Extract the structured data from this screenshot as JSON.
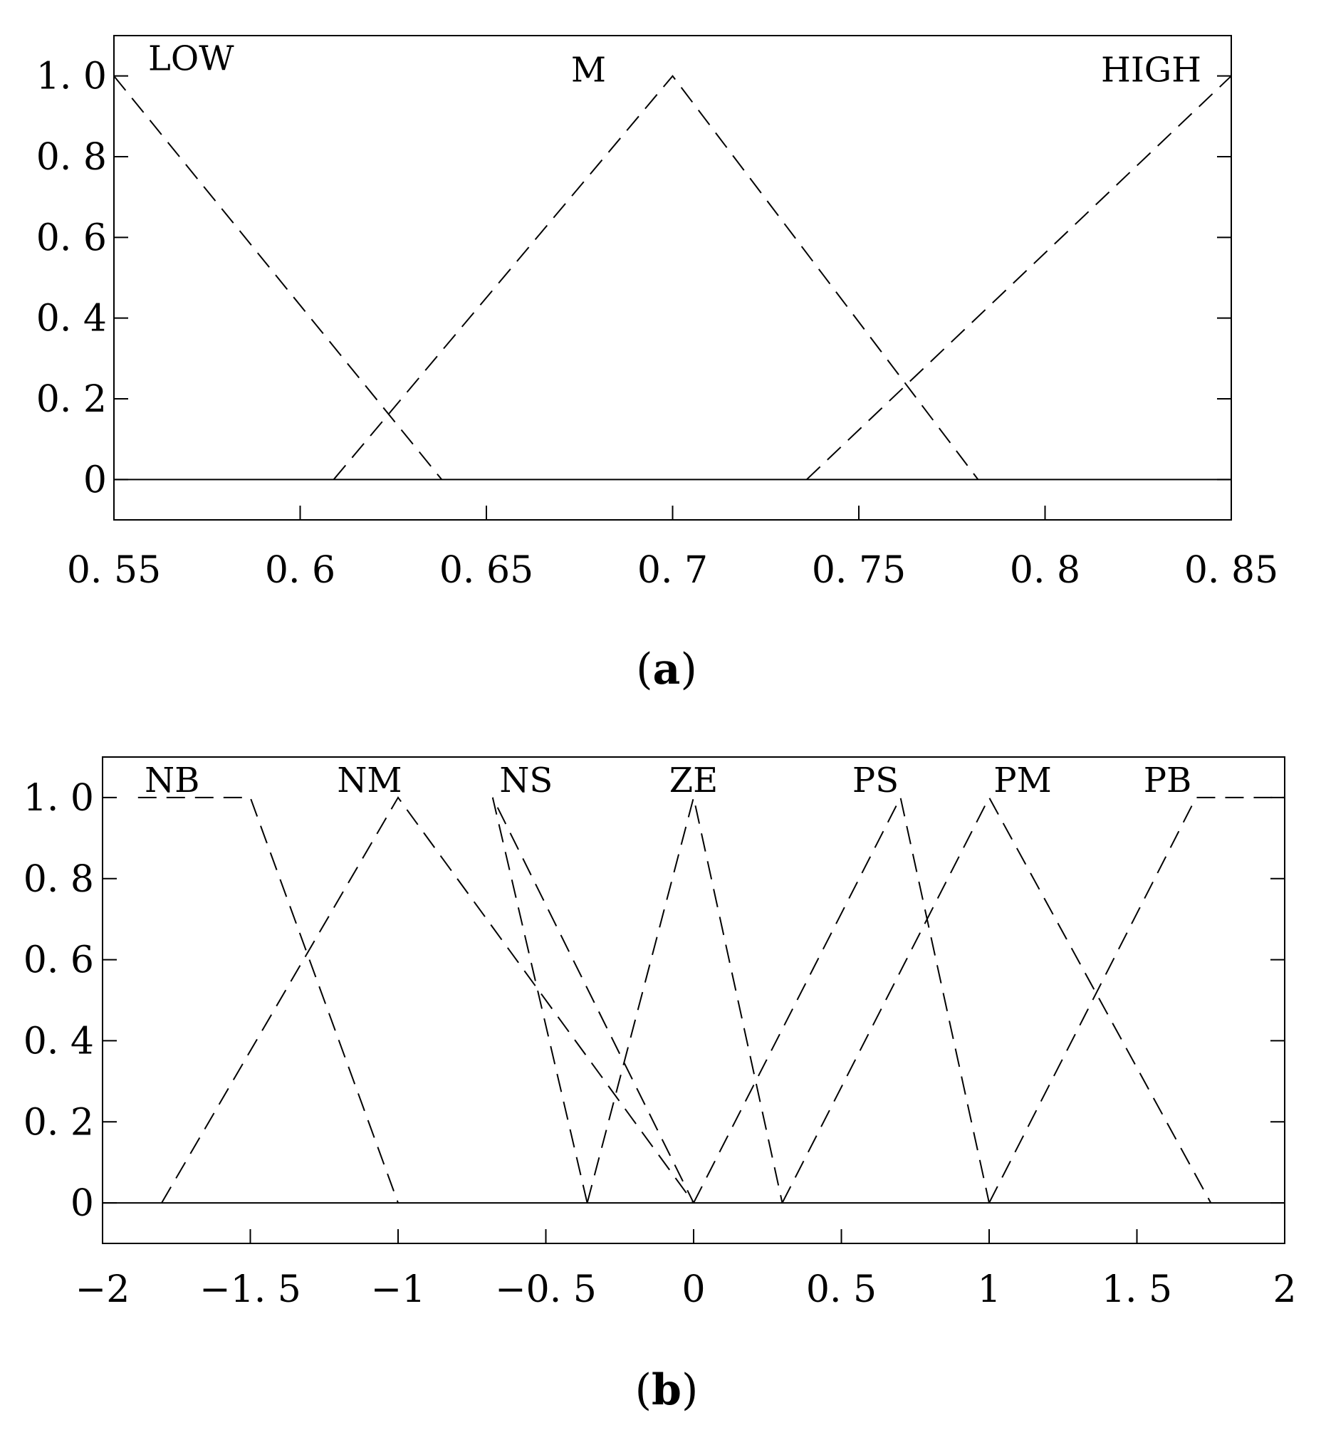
{
  "chart_data": [
    {
      "type": "line",
      "panel": "a",
      "caption": "a",
      "x_ticks": [
        "0. 55",
        "0. 6",
        "0. 65",
        "0. 7",
        "0. 75",
        "0. 8",
        "0. 85"
      ],
      "x_tick_values": [
        0.55,
        0.6,
        0.65,
        0.7,
        0.75,
        0.8,
        0.85
      ],
      "y_ticks": [
        "0",
        "0. 2",
        "0. 4",
        "0. 6",
        "0. 8",
        "1. 0"
      ],
      "y_tick_values": [
        0,
        0.2,
        0.4,
        0.6,
        0.8,
        1.0
      ],
      "xlim": [
        0.55,
        0.85
      ],
      "ylim": [
        -0.1,
        1.1
      ],
      "grid": false,
      "line_style": "dashed",
      "series": [
        {
          "name": "LOW",
          "points": [
            [
              0.55,
              1.0
            ],
            [
              0.638,
              0.0
            ]
          ]
        },
        {
          "name": "M",
          "points": [
            [
              0.609,
              0.0
            ],
            [
              0.7,
              1.0
            ],
            [
              0.782,
              0.0
            ]
          ]
        },
        {
          "name": "HIGH",
          "points": [
            [
              0.736,
              0.0
            ],
            [
              0.85,
              1.0
            ]
          ]
        }
      ]
    },
    {
      "type": "line",
      "panel": "b",
      "caption": "b",
      "x_ticks": [
        "−2",
        "−1. 5",
        "−1",
        "−0. 5",
        "0",
        "0. 5",
        "1",
        "1. 5",
        "2"
      ],
      "x_tick_values": [
        -2,
        -1.5,
        -1,
        -0.5,
        0,
        0.5,
        1,
        1.5,
        2
      ],
      "y_ticks": [
        "0",
        "0. 2",
        "0. 4",
        "0. 6",
        "0. 8",
        "1. 0"
      ],
      "y_tick_values": [
        0,
        0.2,
        0.4,
        0.6,
        0.8,
        1.0
      ],
      "xlim": [
        -2,
        2
      ],
      "ylim": [
        -0.1,
        1.1
      ],
      "grid": false,
      "line_style": "dashed",
      "series": [
        {
          "name": "NB",
          "points": [
            [
              -1.88,
              1.0
            ],
            [
              -1.5,
              1.0
            ],
            [
              -1.0,
              0.0
            ]
          ]
        },
        {
          "name": "NM",
          "points": [
            [
              -1.8,
              0.0
            ],
            [
              -1.0,
              1.0
            ],
            [
              0.0,
              0.0
            ]
          ]
        },
        {
          "name": "NS",
          "points": [
            [
              -0.36,
              0.0
            ],
            [
              -0.68,
              1.0
            ],
            [
              0.0,
              0.0
            ]
          ]
        },
        {
          "name": "ZE",
          "points": [
            [
              -0.36,
              0.0
            ],
            [
              0.0,
              1.0
            ],
            [
              0.3,
              0.0
            ]
          ]
        },
        {
          "name": "PS",
          "points": [
            [
              0.0,
              0.0
            ],
            [
              0.7,
              1.0
            ],
            [
              1.0,
              0.0
            ]
          ]
        },
        {
          "name": "PM",
          "points": [
            [
              0.3,
              0.0
            ],
            [
              1.0,
              1.0
            ],
            [
              1.75,
              0.0
            ]
          ]
        },
        {
          "name": "PB",
          "points": [
            [
              1.0,
              0.0
            ],
            [
              1.7,
              1.0
            ],
            [
              2.0,
              1.0
            ]
          ]
        }
      ]
    }
  ]
}
